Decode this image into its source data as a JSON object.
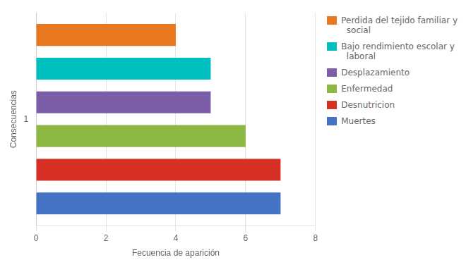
{
  "chart_data": {
    "type": "bar",
    "orientation": "horizontal",
    "categories": [
      "1"
    ],
    "series": [
      {
        "name": "Perdida del tejido familiar y\n  social",
        "color": "#E87820",
        "values": [
          4
        ]
      },
      {
        "name": "Bajo rendimiento escolar y\n  laboral",
        "color": "#00BFBF",
        "values": [
          5
        ]
      },
      {
        "name": "Desplazamiento",
        "color": "#7B5EA7",
        "values": [
          5
        ]
      },
      {
        "name": "Enfermedad",
        "color": "#8DB844",
        "values": [
          6
        ]
      },
      {
        "name": "Desnutricion",
        "color": "#D93025",
        "values": [
          7
        ]
      },
      {
        "name": "Muertes",
        "color": "#4472C4",
        "values": [
          7
        ]
      }
    ],
    "xlabel": "Fecuencia de aparición",
    "ylabel": "Consecuencias",
    "xlim": [
      0,
      8
    ],
    "xticks": [
      0,
      2,
      4,
      6,
      8
    ],
    "grid": true,
    "legend": "right"
  }
}
